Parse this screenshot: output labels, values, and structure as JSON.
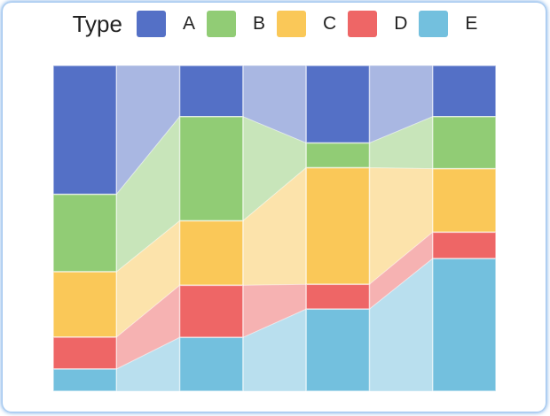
{
  "legend": {
    "title": "Type",
    "items": [
      {
        "label": "A",
        "color": "#5470C6"
      },
      {
        "label": "B",
        "color": "#91CC75"
      },
      {
        "label": "C",
        "color": "#FAC858"
      },
      {
        "label": "D",
        "color": "#EE6666"
      },
      {
        "label": "E",
        "color": "#73C0DE"
      }
    ]
  },
  "chart_data": {
    "type": "bar",
    "variant": "percent-stacked-bars-with-flow-transitions",
    "bar_count": 4,
    "stack_order_top_to_bottom": [
      "A",
      "B",
      "C",
      "D",
      "E"
    ],
    "series": [
      {
        "name": "A",
        "color": "#5470C6",
        "values_pct": [
          39.6,
          15.7,
          23.8,
          15.7
        ]
      },
      {
        "name": "B",
        "color": "#91CC75",
        "values_pct": [
          23.8,
          32.0,
          7.6,
          16.0
        ]
      },
      {
        "name": "C",
        "color": "#FAC858",
        "values_pct": [
          20.1,
          19.8,
          35.8,
          19.5
        ]
      },
      {
        "name": "D",
        "color": "#EE6666",
        "values_pct": [
          9.8,
          16.0,
          7.6,
          8.1
        ]
      },
      {
        "name": "E",
        "color": "#73C0DE",
        "values_pct": [
          6.8,
          16.5,
          25.2,
          40.7
        ]
      }
    ],
    "transition_fill_opacity": 0.5,
    "legend_position": "top",
    "axes_visible": false
  },
  "frame": {
    "background": "#FFFFFF",
    "border_glow_color": "#A9CCEE"
  }
}
